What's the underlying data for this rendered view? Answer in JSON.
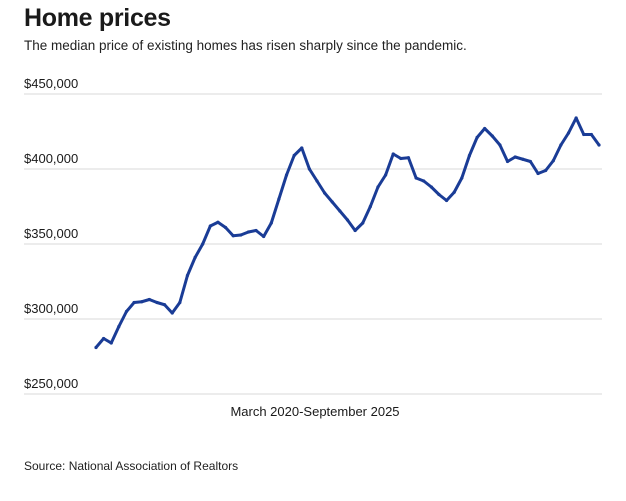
{
  "colors": {
    "line": "#1a3c96",
    "grid": "#d9d9d9"
  },
  "source": "Source: National Association of Realtors",
  "chart_data": {
    "type": "line",
    "title": "Home prices",
    "subtitle": "The median price of existing homes has risen sharply since the pandemic.",
    "xlabel": "March 2020-September 2025",
    "ylabel": "",
    "ylim": [
      250000,
      450000
    ],
    "y_ticks": [
      {
        "value": 450000,
        "label": "$450,000"
      },
      {
        "value": 400000,
        "label": "$400,000"
      },
      {
        "value": 350000,
        "label": "$350,000"
      },
      {
        "value": 300000,
        "label": "$300,000"
      },
      {
        "value": 250000,
        "label": "$250,000"
      }
    ],
    "grid": true,
    "series": [
      {
        "name": "Median existing-home price",
        "values": [
          281000,
          287000,
          284000,
          295000,
          305000,
          311000,
          311500,
          313000,
          311000,
          309500,
          304000,
          311000,
          329000,
          341000,
          350000,
          362000,
          364500,
          361000,
          355500,
          356000,
          358000,
          359000,
          355000,
          364000,
          380000,
          396000,
          409000,
          414000,
          400000,
          392000,
          384000,
          378000,
          372000,
          366000,
          359000,
          364000,
          375000,
          388000,
          396000,
          410000,
          407000,
          407500,
          394000,
          392000,
          388000,
          383000,
          379000,
          384500,
          394000,
          409000,
          421000,
          427000,
          422000,
          416000,
          405000,
          408000,
          406500,
          405000,
          397000,
          399000,
          405500,
          416000,
          424000,
          434000,
          423000,
          423000,
          416000
        ]
      }
    ]
  }
}
